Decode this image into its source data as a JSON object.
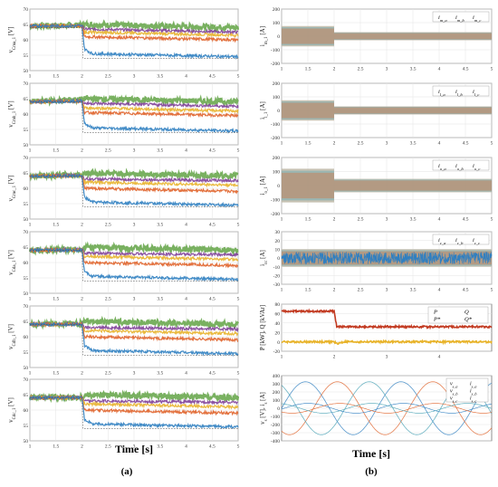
{
  "figure": {
    "left_xlabel": "Time [s]",
    "right_xlabel": "Time [s]",
    "left_caption": "(a)",
    "right_caption": "(b)"
  },
  "colors": {
    "blue": "#2f7fc1",
    "orange": "#e0632a",
    "yellow": "#e8b32a",
    "green": "#6aa84f",
    "purple": "#7e3f98",
    "red": "#c23b22",
    "teal": "#4aa3b5",
    "gray_band": "#bdb7a6"
  },
  "chart_data": [
    {
      "type": "line",
      "panel": "a1",
      "ylabel": "v_{Cma_1} [V]",
      "xlim": [
        1,
        5
      ],
      "ylim": [
        50,
        70
      ],
      "xticks": [
        "1",
        "1.5",
        "2",
        "2.5",
        "3",
        "3.5",
        "4",
        "4.5",
        "5"
      ],
      "yticks": [
        "50",
        "55",
        "60",
        "65",
        "70"
      ],
      "series": [
        {
          "color_key": "green",
          "values": [
            [
              1,
              64.5
            ],
            [
              2,
              64.8
            ],
            [
              2.05,
              65
            ],
            [
              5,
              64
            ]
          ]
        },
        {
          "color_key": "purple",
          "values": [
            [
              1,
              64.5
            ],
            [
              2,
              64.6
            ],
            [
              2.05,
              63.5
            ],
            [
              5,
              62.5
            ]
          ]
        },
        {
          "color_key": "yellow",
          "values": [
            [
              1,
              64.5
            ],
            [
              2,
              64.5
            ],
            [
              2.05,
              62.5
            ],
            [
              5,
              61.5
            ]
          ]
        },
        {
          "color_key": "orange",
          "values": [
            [
              1,
              64.5
            ],
            [
              2,
              64.5
            ],
            [
              2.05,
              61
            ],
            [
              5,
              60
            ]
          ]
        },
        {
          "color_key": "blue",
          "values": [
            [
              1,
              64.5
            ],
            [
              2,
              64.5
            ],
            [
              2.05,
              57
            ],
            [
              2.2,
              55.5
            ],
            [
              5,
              54.5
            ]
          ]
        }
      ]
    },
    {
      "type": "line",
      "panel": "a2",
      "ylabel": "v_{Cmb_1} [V]",
      "xlim": [
        1,
        5
      ],
      "ylim": [
        50,
        70
      ],
      "xticks": [
        "1",
        "1.5",
        "2",
        "2.5",
        "3",
        "3.5",
        "4",
        "4.5",
        "5"
      ],
      "yticks": [
        "50",
        "55",
        "60",
        "65",
        "70"
      ],
      "series": [
        {
          "color_key": "green",
          "values": [
            [
              1,
              64
            ],
            [
              2,
              64.8
            ],
            [
              2.05,
              65
            ],
            [
              5,
              64
            ]
          ]
        },
        {
          "color_key": "purple",
          "values": [
            [
              1,
              64
            ],
            [
              2,
              64.3
            ],
            [
              2.05,
              63.5
            ],
            [
              5,
              62.5
            ]
          ]
        },
        {
          "color_key": "yellow",
          "values": [
            [
              1,
              64
            ],
            [
              2,
              64.2
            ],
            [
              2.05,
              62
            ],
            [
              5,
              61
            ]
          ]
        },
        {
          "color_key": "orange",
          "values": [
            [
              1,
              64
            ],
            [
              2,
              64.2
            ],
            [
              2.05,
              60.5
            ],
            [
              5,
              59.5
            ]
          ]
        },
        {
          "color_key": "blue",
          "values": [
            [
              1,
              64
            ],
            [
              2,
              64.2
            ],
            [
              2.05,
              57
            ],
            [
              2.2,
              55.5
            ],
            [
              5,
              54.5
            ]
          ]
        }
      ]
    },
    {
      "type": "line",
      "panel": "a3",
      "ylabel": "v_{Cmc_1} [V]",
      "xlim": [
        1,
        5
      ],
      "ylim": [
        50,
        70
      ],
      "xticks": [
        "1",
        "1.5",
        "2",
        "2.5",
        "3",
        "3.5",
        "4",
        "4.5",
        "5"
      ],
      "yticks": [
        "50",
        "55",
        "60",
        "65",
        "70"
      ],
      "series": [
        {
          "color_key": "green",
          "values": [
            [
              1,
              64
            ],
            [
              2,
              64.4
            ],
            [
              2.05,
              65
            ],
            [
              5,
              64
            ]
          ]
        },
        {
          "color_key": "purple",
          "values": [
            [
              1,
              64
            ],
            [
              2,
              64.2
            ],
            [
              2.05,
              63
            ],
            [
              5,
              62.5
            ]
          ]
        },
        {
          "color_key": "yellow",
          "values": [
            [
              1,
              64
            ],
            [
              2,
              64
            ],
            [
              2.05,
              62
            ],
            [
              5,
              61
            ]
          ]
        },
        {
          "color_key": "orange",
          "values": [
            [
              1,
              64
            ],
            [
              2,
              64
            ],
            [
              2.05,
              60
            ],
            [
              5,
              59
            ]
          ]
        },
        {
          "color_key": "blue",
          "values": [
            [
              1,
              64
            ],
            [
              2,
              64
            ],
            [
              2.05,
              57
            ],
            [
              2.2,
              55.5
            ],
            [
              5,
              54.5
            ]
          ]
        }
      ]
    },
    {
      "type": "line",
      "panel": "a4",
      "ylabel": "v_{Cda_1} [V]",
      "xlim": [
        1,
        5
      ],
      "ylim": [
        50,
        70
      ],
      "xticks": [
        "1",
        "1.5",
        "2",
        "2.5",
        "3",
        "3.5",
        "4",
        "4.5",
        "5"
      ],
      "yticks": [
        "50",
        "55",
        "60",
        "65",
        "70"
      ],
      "series": [
        {
          "color_key": "green",
          "values": [
            [
              1,
              64
            ],
            [
              2,
              64.3
            ],
            [
              2.05,
              65
            ],
            [
              5,
              64
            ]
          ]
        },
        {
          "color_key": "purple",
          "values": [
            [
              1,
              64
            ],
            [
              2,
              64.2
            ],
            [
              2.05,
              63
            ],
            [
              5,
              62.5
            ]
          ]
        },
        {
          "color_key": "yellow",
          "values": [
            [
              1,
              64
            ],
            [
              2,
              64
            ],
            [
              2.05,
              62
            ],
            [
              5,
              61
            ]
          ]
        },
        {
          "color_key": "orange",
          "values": [
            [
              1,
              64
            ],
            [
              2,
              64
            ],
            [
              2.05,
              60
            ],
            [
              5,
              59
            ]
          ]
        },
        {
          "color_key": "blue",
          "values": [
            [
              1,
              64
            ],
            [
              2,
              64
            ],
            [
              2.05,
              57
            ],
            [
              2.2,
              55.5
            ],
            [
              5,
              54.5
            ]
          ]
        }
      ]
    },
    {
      "type": "line",
      "panel": "a5",
      "ylabel": "v_{Cdb_1} [V]",
      "xlim": [
        1,
        5
      ],
      "ylim": [
        50,
        70
      ],
      "xticks": [
        "1",
        "1.5",
        "2",
        "2.5",
        "3",
        "3.5",
        "4",
        "4.5",
        "5"
      ],
      "yticks": [
        "50",
        "55",
        "60",
        "65",
        "70"
      ],
      "series": [
        {
          "color_key": "green",
          "values": [
            [
              1,
              64
            ],
            [
              2,
              64.3
            ],
            [
              2.05,
              65
            ],
            [
              5,
              64
            ]
          ]
        },
        {
          "color_key": "purple",
          "values": [
            [
              1,
              64
            ],
            [
              2,
              64.2
            ],
            [
              2.05,
              63
            ],
            [
              5,
              62.5
            ]
          ]
        },
        {
          "color_key": "yellow",
          "values": [
            [
              1,
              64
            ],
            [
              2,
              64
            ],
            [
              2.05,
              62
            ],
            [
              5,
              61
            ]
          ]
        },
        {
          "color_key": "orange",
          "values": [
            [
              1,
              64
            ],
            [
              2,
              64
            ],
            [
              2.05,
              60
            ],
            [
              5,
              59
            ]
          ]
        },
        {
          "color_key": "blue",
          "values": [
            [
              1,
              64
            ],
            [
              2,
              64
            ],
            [
              2.05,
              57
            ],
            [
              2.2,
              55.5
            ],
            [
              5,
              54.5
            ]
          ]
        }
      ]
    },
    {
      "type": "line",
      "panel": "a6",
      "ylabel": "v_{Cdc_1} [V]",
      "xlim": [
        1,
        5
      ],
      "ylim": [
        50,
        70
      ],
      "xticks": [
        "1",
        "1.5",
        "2",
        "2.5",
        "3",
        "3.5",
        "4",
        "4.5",
        "5"
      ],
      "yticks": [
        "50",
        "55",
        "60",
        "65",
        "70"
      ],
      "series": [
        {
          "color_key": "green",
          "values": [
            [
              1,
              64
            ],
            [
              2,
              64.3
            ],
            [
              2.05,
              65
            ],
            [
              5,
              64
            ]
          ]
        },
        {
          "color_key": "purple",
          "values": [
            [
              1,
              64
            ],
            [
              2,
              64.2
            ],
            [
              2.05,
              63
            ],
            [
              5,
              62.5
            ]
          ]
        },
        {
          "color_key": "yellow",
          "values": [
            [
              1,
              64
            ],
            [
              2,
              64
            ],
            [
              2.05,
              62
            ],
            [
              5,
              61
            ]
          ]
        },
        {
          "color_key": "orange",
          "values": [
            [
              1,
              64
            ],
            [
              2,
              64
            ],
            [
              2.05,
              60
            ],
            [
              5,
              59
            ]
          ]
        },
        {
          "color_key": "blue",
          "values": [
            [
              1,
              64
            ],
            [
              2,
              64
            ],
            [
              2.05,
              57
            ],
            [
              2.2,
              55.5
            ],
            [
              5,
              54.5
            ]
          ]
        }
      ]
    },
    {
      "type": "area",
      "panel": "b1",
      "ylabel": "i_{m_1} [A]",
      "xlim": [
        1,
        5
      ],
      "ylim": [
        -200,
        200
      ],
      "xticks": [
        "1",
        "1.5",
        "2",
        "2.5",
        "3",
        "3.5",
        "4",
        "4.5",
        "5"
      ],
      "yticks": [
        "-200",
        "-100",
        "0",
        "100",
        "200"
      ],
      "legend": [
        "i_{m_a}",
        "i_{m_b}",
        "i_{m_c}"
      ],
      "envelope": [
        {
          "x": [
            1,
            2
          ],
          "amp": 75
        },
        {
          "x": [
            2,
            5
          ],
          "amp": 30
        }
      ]
    },
    {
      "type": "area",
      "panel": "b2",
      "ylabel": "i_{l_1} [A]",
      "xlim": [
        1,
        5
      ],
      "ylim": [
        -200,
        200
      ],
      "xticks": [
        "1",
        "1.5",
        "2",
        "2.5",
        "3",
        "3.5",
        "4",
        "4.5",
        "5"
      ],
      "yticks": [
        "-200",
        "-100",
        "0",
        "100",
        "200"
      ],
      "legend": [
        "i_{l_a}",
        "i_{l_b}",
        "i_{l_c}"
      ],
      "envelope": [
        {
          "x": [
            1,
            2
          ],
          "amp": 75
        },
        {
          "x": [
            2,
            5
          ],
          "amp": 30
        }
      ]
    },
    {
      "type": "area",
      "panel": "b3",
      "ylabel": "i_{o_1} [A]",
      "xlim": [
        1,
        5
      ],
      "ylim": [
        -250,
        250
      ],
      "xticks": [
        "1",
        "1.5",
        "2",
        "2.5",
        "3",
        "3.5",
        "4",
        "4.5",
        "5"
      ],
      "yticks": [
        "-200",
        "-100",
        "0",
        "100",
        "200"
      ],
      "legend": [
        "i_{o_a}",
        "i_{o_b}",
        "i_{o_c}"
      ],
      "envelope": [
        {
          "x": [
            1,
            2
          ],
          "amp": 150
        },
        {
          "x": [
            2,
            5
          ],
          "amp": 60
        }
      ]
    },
    {
      "type": "area",
      "panel": "b4",
      "ylabel": "i_{cc} [A]",
      "xlim": [
        1,
        5
      ],
      "ylim": [
        -30,
        30
      ],
      "xticks": [
        "1",
        "1.5",
        "2",
        "2.5",
        "3",
        "3.5",
        "4",
        "4.5",
        "5"
      ],
      "yticks": [
        "-30",
        "-20",
        "-10",
        "0",
        "10",
        "20",
        "30"
      ],
      "legend": [
        "i_{c_a}",
        "i_{c_b}",
        "i_{c_c}"
      ],
      "envelope": [
        {
          "x": [
            1,
            5
          ],
          "amp": 10
        }
      ]
    },
    {
      "type": "line",
      "panel": "b5",
      "ylabel": "P [kW], Q [kVAr]",
      "xlim": [
        1,
        5
      ],
      "ylim": [
        -20,
        80
      ],
      "xticks": [
        "1",
        "2",
        "3",
        "4"
      ],
      "yticks": [
        "-20",
        "0",
        "20",
        "40",
        "60",
        "80"
      ],
      "legend": [
        "P",
        "Q",
        "P*",
        "Q*"
      ],
      "series": [
        {
          "name": "P",
          "color_key": "red",
          "values": [
            [
              1,
              65
            ],
            [
              2,
              65
            ],
            [
              2.05,
              32
            ],
            [
              5,
              32
            ]
          ]
        },
        {
          "name": "Q",
          "color_key": "yellow",
          "values": [
            [
              1,
              0
            ],
            [
              2,
              0
            ],
            [
              2.05,
              -4
            ],
            [
              2.2,
              0
            ],
            [
              5,
              0
            ]
          ]
        }
      ]
    },
    {
      "type": "line",
      "panel": "b6",
      "ylabel": "v_{s} [V], i_{s} [A]",
      "xlim": [
        0,
        1
      ],
      "ylim": [
        -400,
        400
      ],
      "xticks": [],
      "yticks": [
        "-400",
        "-300",
        "-200",
        "-100",
        "0",
        "100",
        "200",
        "300",
        "400"
      ],
      "legend": [
        "v_{s_a}",
        "v_{s_b}",
        "v_{s_c}",
        "i_{s_a}",
        "i_{s_b}",
        "i_{s_c}"
      ],
      "series": [
        {
          "name": "v_{s_a}",
          "color_key": "blue",
          "amplitude": 325,
          "phase_deg": 0
        },
        {
          "name": "v_{s_b}",
          "color_key": "orange",
          "amplitude": 325,
          "phase_deg": -120
        },
        {
          "name": "v_{s_c}",
          "color_key": "teal",
          "amplitude": 325,
          "phase_deg": 120
        },
        {
          "name": "i_{s_a}",
          "color_key": "blue",
          "amplitude": 60,
          "phase_deg": -10
        },
        {
          "name": "i_{s_b}",
          "color_key": "orange",
          "amplitude": 60,
          "phase_deg": -130
        },
        {
          "name": "i_{s_c}",
          "color_key": "teal",
          "amplitude": 60,
          "phase_deg": 110
        }
      ]
    }
  ]
}
